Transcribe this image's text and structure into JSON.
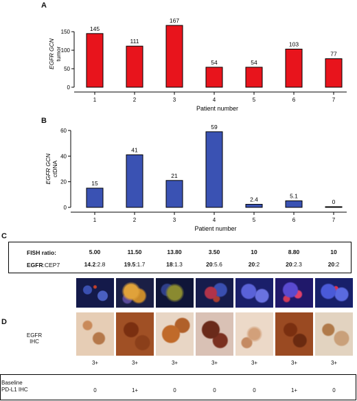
{
  "panels": {
    "A": "A",
    "B": "B",
    "C": "C",
    "D": "D"
  },
  "chart_data": [
    {
      "type": "bar",
      "categories": [
        "1",
        "2",
        "3",
        "4",
        "5",
        "6",
        "7"
      ],
      "values": [
        145,
        111,
        167,
        54,
        54,
        103,
        77
      ],
      "data_labels": [
        "145",
        "111",
        "167",
        "54",
        "54",
        "103",
        "77"
      ],
      "ylabel_line1": "EGFR GCN",
      "ylabel_line2": "tumor",
      "xlabel": "Patient number",
      "ylim": [
        0,
        180
      ],
      "yticks": [
        0,
        50,
        100,
        150
      ],
      "color": "#e8141c"
    },
    {
      "type": "bar",
      "categories": [
        "1",
        "2",
        "3",
        "4",
        "5",
        "6",
        "7"
      ],
      "values": [
        15,
        41,
        21,
        59,
        2.4,
        5.1,
        0
      ],
      "data_labels": [
        "15",
        "41",
        "21",
        "59",
        "2.4",
        "5.1",
        "0"
      ],
      "ylabel_line1": "EGFR GCN",
      "ylabel_line2": "ctDNA",
      "xlabel": "Patient number",
      "ylim": [
        0,
        60
      ],
      "yticks": [
        0,
        20,
        40,
        60
      ],
      "color": "#3a52b3"
    }
  ],
  "fish": {
    "ratio_label": "FISH ratio:",
    "ratios": [
      "5.00",
      "11.50",
      "13.80",
      "3.50",
      "10",
      "8.80",
      "10"
    ],
    "egfr_label_bold": "EGFR",
    "egfr_label_rest": ":CEP7",
    "egfr_bold": [
      "14.2",
      "19.5",
      "18",
      "20",
      "20",
      "20",
      "20"
    ],
    "cep7_rest": [
      ":2.8",
      ":1.7",
      ":1.3",
      ":5.6",
      ":2",
      ":2.3",
      ":2"
    ]
  },
  "ihc": {
    "label_line1": "EGFR",
    "label_line2": "IHC",
    "scores": [
      "3+",
      "3+",
      "3+",
      "3+",
      "3+",
      "3+",
      "3+"
    ]
  },
  "pdl1": {
    "label_line1": "Baseline",
    "label_line2": "PD-L1 IHC",
    "scores": [
      "0",
      "1+",
      "0",
      "0",
      "0",
      "1+",
      "0"
    ]
  },
  "colors": {
    "fish_bg": "#1a1f5a",
    "ihc_brown": "#8b3f1a",
    "ihc_light": "#d9b79a"
  }
}
